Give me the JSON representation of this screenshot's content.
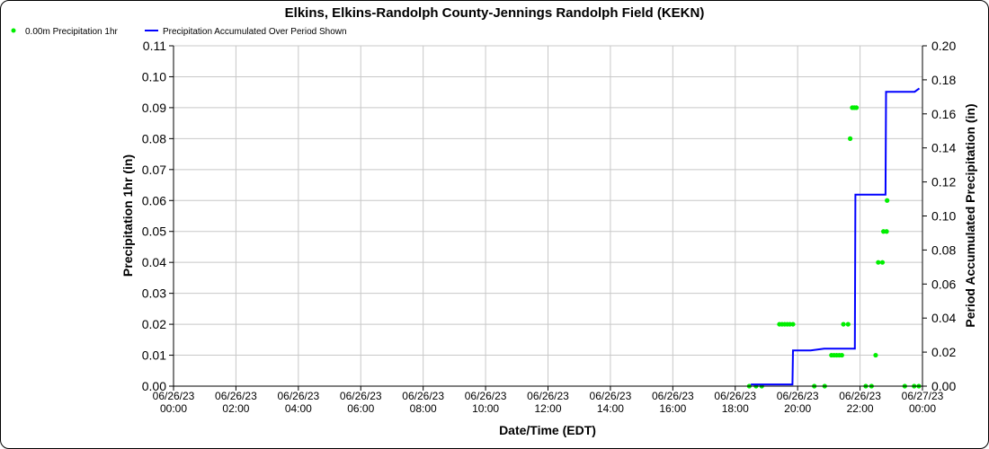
{
  "chart_data": {
    "type": "scatter+line",
    "title": "Elkins, Elkins-Randolph County-Jennings Randolph Field (KEKN)",
    "xlabel": "Date/Time (EDT)",
    "ylabel": "Precipitation 1hr (in)",
    "y2label": "Period Accumulated Precipitation (in)",
    "xlim": [
      "06/26/23 00:00",
      "06/27/23 00:00"
    ],
    "ylim": [
      0,
      0.11
    ],
    "y2lim": [
      0,
      0.2
    ],
    "grid": true,
    "legend_placement": "top-left",
    "x_ticks": [
      [
        "06/26/23",
        "00:00"
      ],
      [
        "06/26/23",
        "02:00"
      ],
      [
        "06/26/23",
        "04:00"
      ],
      [
        "06/26/23",
        "06:00"
      ],
      [
        "06/26/23",
        "08:00"
      ],
      [
        "06/26/23",
        "10:00"
      ],
      [
        "06/26/23",
        "12:00"
      ],
      [
        "06/26/23",
        "14:00"
      ],
      [
        "06/26/23",
        "16:00"
      ],
      [
        "06/26/23",
        "18:00"
      ],
      [
        "06/26/23",
        "20:00"
      ],
      [
        "06/26/23",
        "22:00"
      ],
      [
        "06/27/23",
        "00:00"
      ]
    ],
    "y_ticks": [
      "0.00",
      "0.01",
      "0.02",
      "0.03",
      "0.04",
      "0.05",
      "0.06",
      "0.07",
      "0.08",
      "0.09",
      "0.10",
      "0.11"
    ],
    "y2_ticks": [
      "0.00",
      "0.02",
      "0.04",
      "0.06",
      "0.08",
      "0.10",
      "0.12",
      "0.14",
      "0.16",
      "0.18",
      "0.20"
    ],
    "series": [
      {
        "name": "0.00m Precipitation 1hr",
        "kind": "scatter",
        "axis": "left",
        "color": "#00ee00",
        "points": [
          [
            "06/26/23 18:27",
            0.0
          ],
          [
            "06/26/23 18:40",
            0.0
          ],
          [
            "06/26/23 18:51",
            0.0
          ],
          [
            "06/26/23 19:25",
            0.02
          ],
          [
            "06/26/23 19:30",
            0.02
          ],
          [
            "06/26/23 19:35",
            0.02
          ],
          [
            "06/26/23 19:40",
            0.02
          ],
          [
            "06/26/23 19:45",
            0.02
          ],
          [
            "06/26/23 19:51",
            0.02
          ],
          [
            "06/26/23 20:32",
            0.0
          ],
          [
            "06/26/23 20:52",
            0.0
          ],
          [
            "06/26/23 21:05",
            0.01
          ],
          [
            "06/26/23 21:10",
            0.01
          ],
          [
            "06/26/23 21:15",
            0.01
          ],
          [
            "06/26/23 21:20",
            0.01
          ],
          [
            "06/26/23 21:25",
            0.01
          ],
          [
            "06/26/23 21:28",
            0.02
          ],
          [
            "06/26/23 21:37",
            0.02
          ],
          [
            "06/26/23 21:41",
            0.08
          ],
          [
            "06/26/23 21:45",
            0.09
          ],
          [
            "06/26/23 21:49",
            0.09
          ],
          [
            "06/26/23 21:53",
            0.09
          ],
          [
            "06/26/23 22:11",
            0.0
          ],
          [
            "06/26/23 22:22",
            0.0
          ],
          [
            "06/26/23 22:30",
            0.01
          ],
          [
            "06/26/23 22:35",
            0.04
          ],
          [
            "06/26/23 22:43",
            0.04
          ],
          [
            "06/26/23 22:45",
            0.05
          ],
          [
            "06/26/23 22:51",
            0.05
          ],
          [
            "06/26/23 22:52",
            0.06
          ],
          [
            "06/26/23 23:26",
            0.0
          ],
          [
            "06/26/23 23:44",
            0.0
          ],
          [
            "06/26/23 23:53",
            0.0
          ]
        ]
      },
      {
        "name": "Precipitation Accumulated Over Period Shown",
        "kind": "line",
        "axis": "right",
        "color": "#0000ff",
        "points": [
          [
            "06/26/23 18:30",
            0.001
          ],
          [
            "06/26/23 19:50",
            0.001
          ],
          [
            "06/26/23 19:51",
            0.021
          ],
          [
            "06/26/23 20:25",
            0.021
          ],
          [
            "06/26/23 20:51",
            0.022
          ],
          [
            "06/26/23 21:50",
            0.022
          ],
          [
            "06/26/23 21:51",
            0.1125
          ],
          [
            "06/26/23 22:49",
            0.1125
          ],
          [
            "06/26/23 22:50",
            0.173
          ],
          [
            "06/26/23 23:45",
            0.173
          ],
          [
            "06/26/23 23:54",
            0.175
          ]
        ]
      }
    ]
  }
}
